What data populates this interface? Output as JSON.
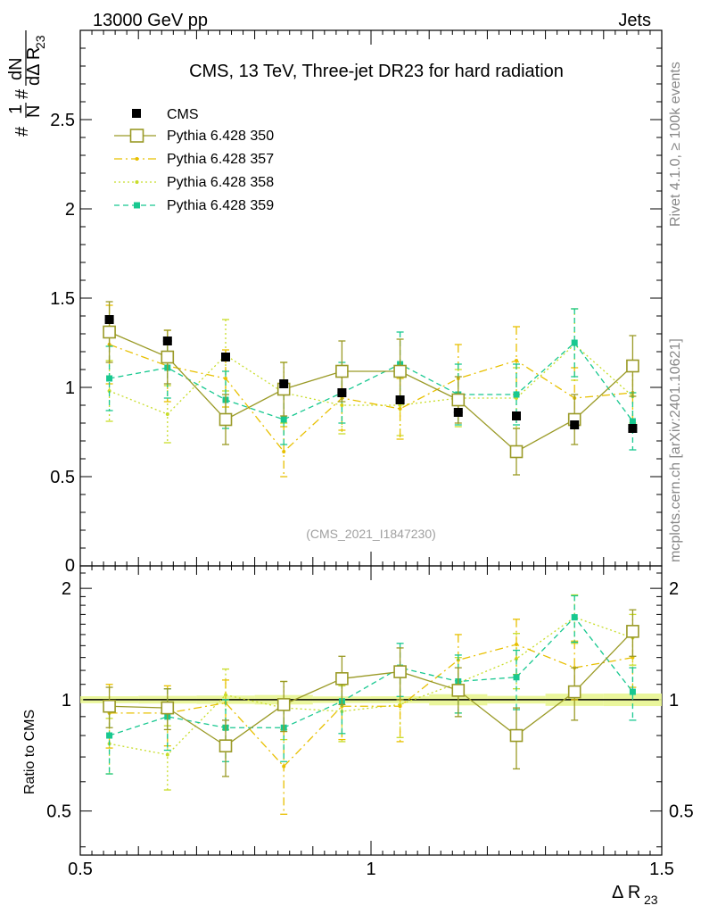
{
  "header": {
    "left": "13000 GeV pp",
    "right": "Jets"
  },
  "side_labels": {
    "rivet": "Rivet 4.1.0, ≥ 100k events",
    "mcplots": "mcplots.cern.ch [arXiv:2401.10621]"
  },
  "chart_data": {
    "type": "scatter",
    "title": "CMS, 13 TeV, Three-jet DR23 for hard radiation",
    "watermark": "(CMS_2021_I1847230)",
    "xlabel": "Δ R",
    "xlabel_sub": "23",
    "ylabel": "#¹⁄N #dN⁄dΔ R23",
    "ylabel_parts": {
      "hash1": "#",
      "one": "1",
      "n": "N",
      "hash2": "#",
      "dn": "dN",
      "dd": "dΔ R",
      "sub": "23"
    },
    "ratio_ylabel": "Ratio to CMS",
    "x": [
      0.55,
      0.65,
      0.75,
      0.85,
      0.95,
      1.05,
      1.15,
      1.25,
      1.35,
      1.45
    ],
    "x_bin_half_width": 0.05,
    "xlim": [
      0.5,
      1.5
    ],
    "ylim": [
      0,
      3.0
    ],
    "ratio_ylim": [
      0.38,
      2.3
    ],
    "x_ticks": [
      0.5,
      1,
      1.5
    ],
    "x_tick_labels": [
      "0.5",
      "1",
      "1.5"
    ],
    "y_ticks": [
      0.5,
      1,
      1.5,
      2,
      2.5
    ],
    "y_tick_labels": [
      "0.5",
      "1",
      "1.5",
      "2",
      "2.5"
    ],
    "y_zero_label": "0",
    "ratio_y_ticks": [
      0.5,
      1,
      2
    ],
    "ratio_y_tick_labels": [
      "0.5",
      "1",
      "2"
    ],
    "legend_position": "top-left",
    "data": {
      "name": "CMS",
      "color": "#000000",
      "values": [
        1.38,
        1.26,
        1.17,
        1.02,
        0.97,
        0.93,
        0.86,
        0.84,
        0.79,
        0.77
      ],
      "errors": [
        0.03,
        0.03,
        0.03,
        0.03,
        0.02,
        0.02,
        0.03,
        0.02,
        0.03,
        0.03
      ]
    },
    "series": [
      {
        "name": "Pythia 6.428 350",
        "color": "#9a9a26",
        "style": "solid",
        "marker": "open-square",
        "values": [
          1.31,
          1.17,
          0.82,
          0.99,
          1.09,
          1.09,
          0.93,
          0.64,
          0.82,
          1.12
        ],
        "errors": [
          0.17,
          0.15,
          0.14,
          0.15,
          0.17,
          0.18,
          0.13,
          0.13,
          0.14,
          0.17
        ],
        "ratio": [
          0.96,
          0.95,
          0.75,
          0.97,
          1.14,
          1.19,
          1.06,
          0.8,
          1.05,
          1.53
        ],
        "ratio_errors": [
          0.12,
          0.12,
          0.13,
          0.15,
          0.17,
          0.19,
          0.16,
          0.15,
          0.17,
          0.22
        ]
      },
      {
        "name": "Pythia 6.428 357",
        "color": "#e8c000",
        "style": "dashdot",
        "marker": "small-dot",
        "values": [
          1.24,
          1.12,
          1.05,
          0.64,
          0.94,
          0.88,
          1.05,
          1.15,
          0.94,
          0.97
        ],
        "errors": [
          0.22,
          0.2,
          0.16,
          0.14,
          0.18,
          0.17,
          0.19,
          0.19,
          0.17,
          0.17
        ],
        "ratio": [
          0.92,
          0.92,
          0.98,
          0.66,
          0.96,
          0.96,
          1.28,
          1.41,
          1.22,
          1.3
        ],
        "ratio_errors": [
          0.18,
          0.17,
          0.15,
          0.17,
          0.18,
          0.19,
          0.22,
          0.24,
          0.22,
          0.22
        ]
      },
      {
        "name": "Pythia 6.428 358",
        "color": "#c8dd2a",
        "style": "dotted",
        "marker": "small-dot",
        "values": [
          0.98,
          0.85,
          1.18,
          0.97,
          0.9,
          0.9,
          0.94,
          0.94,
          1.24,
          0.95
        ],
        "errors": [
          0.17,
          0.16,
          0.2,
          0.17,
          0.16,
          0.17,
          0.16,
          0.17,
          0.2,
          0.17
        ],
        "ratio": [
          0.76,
          0.71,
          1.03,
          0.95,
          0.93,
          0.97,
          1.11,
          1.29,
          1.67,
          1.47
        ],
        "ratio_errors": [
          0.13,
          0.14,
          0.18,
          0.17,
          0.16,
          0.18,
          0.19,
          0.22,
          0.25,
          0.23
        ]
      },
      {
        "name": "Pythia 6.428 359",
        "color": "#18c890",
        "style": "dashed",
        "marker": "filled-square",
        "values": [
          1.05,
          1.11,
          0.93,
          0.82,
          0.97,
          1.13,
          0.96,
          0.96,
          1.25,
          0.81
        ],
        "errors": [
          0.18,
          0.17,
          0.16,
          0.14,
          0.17,
          0.18,
          0.17,
          0.17,
          0.19,
          0.16
        ],
        "ratio": [
          0.8,
          0.9,
          0.84,
          0.84,
          0.99,
          1.22,
          1.12,
          1.15,
          1.67,
          1.05
        ],
        "ratio_errors": [
          0.17,
          0.17,
          0.16,
          0.16,
          0.18,
          0.2,
          0.2,
          0.21,
          0.24,
          0.17
        ]
      }
    ]
  }
}
